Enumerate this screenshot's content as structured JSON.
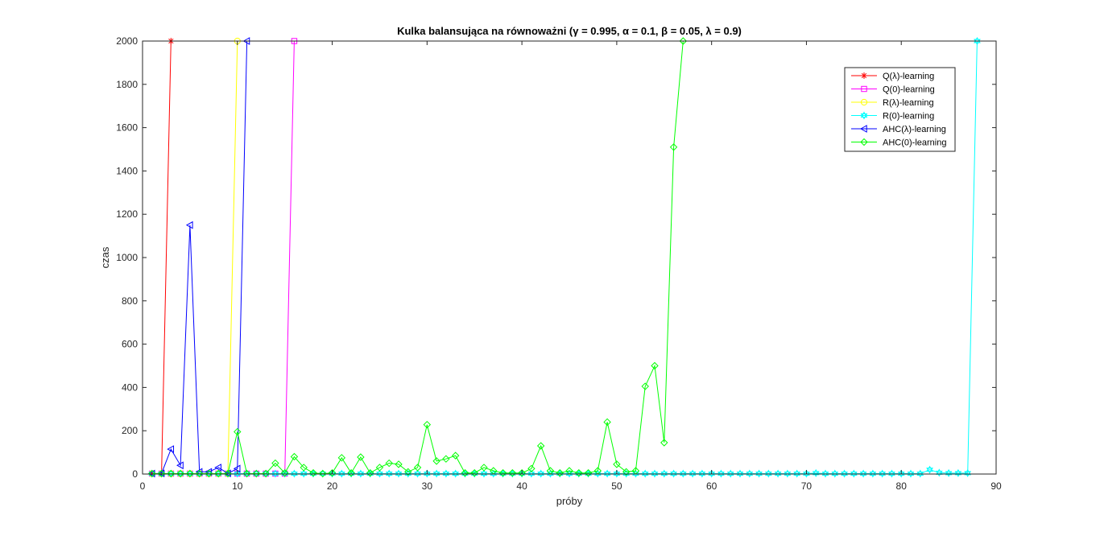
{
  "chart_data": {
    "type": "line",
    "title": "Kulka balansująca na równoważni (γ = 0.995, α = 0.1, β = 0.05, λ = 0.9)",
    "xlabel": "próby",
    "ylabel": "czas",
    "xlim": [
      0,
      90
    ],
    "ylim": [
      0,
      2000
    ],
    "xticks": [
      0,
      10,
      20,
      30,
      40,
      50,
      60,
      70,
      80,
      90
    ],
    "yticks": [
      0,
      200,
      400,
      600,
      800,
      1000,
      1200,
      1400,
      1600,
      1800,
      2000
    ],
    "grid": false,
    "legend_position": "top-right",
    "series": [
      {
        "name": "Q(λ)-learning",
        "color": "#ff0000",
        "marker": "asterisk",
        "x": [
          1,
          2,
          3
        ],
        "y": [
          2,
          2,
          2000
        ]
      },
      {
        "name": "Q(0)-learning",
        "color": "#ff00ff",
        "marker": "square",
        "x": [
          1,
          2,
          3,
          4,
          5,
          6,
          7,
          8,
          9,
          10,
          11,
          12,
          13,
          14,
          15,
          16
        ],
        "y": [
          2,
          2,
          2,
          2,
          2,
          2,
          2,
          2,
          2,
          2,
          2,
          2,
          2,
          2,
          2,
          2000
        ]
      },
      {
        "name": "R(λ)-learning",
        "color": "#ffff00",
        "marker": "circle",
        "x": [
          1,
          2,
          3,
          4,
          5,
          6,
          7,
          8,
          9,
          10
        ],
        "y": [
          2,
          2,
          2,
          2,
          2,
          2,
          2,
          2,
          2,
          2000
        ]
      },
      {
        "name": "R(0)-learning",
        "color": "#00ffff",
        "marker": "hexagram",
        "x": [
          1,
          2,
          3,
          4,
          5,
          6,
          7,
          8,
          9,
          10,
          11,
          12,
          13,
          14,
          15,
          16,
          17,
          18,
          19,
          20,
          21,
          22,
          23,
          24,
          25,
          26,
          27,
          28,
          29,
          30,
          31,
          32,
          33,
          34,
          35,
          36,
          37,
          38,
          39,
          40,
          41,
          42,
          43,
          44,
          45,
          46,
          47,
          48,
          49,
          50,
          51,
          52,
          53,
          54,
          55,
          56,
          57,
          58,
          59,
          60,
          61,
          62,
          63,
          64,
          65,
          66,
          67,
          68,
          69,
          70,
          71,
          72,
          73,
          74,
          75,
          76,
          77,
          78,
          79,
          80,
          81,
          82,
          83,
          84,
          85,
          86,
          87,
          88
        ],
        "y": [
          2,
          2,
          2,
          2,
          2,
          2,
          2,
          2,
          2,
          2,
          2,
          2,
          2,
          2,
          2,
          2,
          2,
          2,
          2,
          2,
          2,
          2,
          2,
          2,
          2,
          2,
          2,
          2,
          2,
          2,
          2,
          2,
          2,
          2,
          2,
          2,
          2,
          2,
          2,
          2,
          2,
          2,
          2,
          2,
          2,
          2,
          2,
          2,
          2,
          2,
          2,
          2,
          2,
          2,
          2,
          2,
          2,
          2,
          2,
          2,
          2,
          2,
          2,
          2,
          2,
          2,
          2,
          2,
          2,
          2,
          4,
          2,
          2,
          2,
          2,
          2,
          2,
          2,
          2,
          2,
          2,
          2,
          20,
          6,
          4,
          4,
          4,
          2000
        ]
      },
      {
        "name": "AHC(λ)-learning",
        "color": "#0000ff",
        "marker": "triangle-left",
        "x": [
          1,
          2,
          3,
          4,
          5,
          6,
          7,
          8,
          9,
          10,
          11
        ],
        "y": [
          2,
          3,
          115,
          40,
          1150,
          10,
          10,
          30,
          3,
          25,
          2000
        ]
      },
      {
        "name": "AHC(0)-learning",
        "color": "#00ff00",
        "marker": "diamond",
        "x": [
          1,
          2,
          3,
          4,
          5,
          6,
          7,
          8,
          9,
          10,
          11,
          12,
          13,
          14,
          15,
          16,
          17,
          18,
          19,
          20,
          21,
          22,
          23,
          24,
          25,
          26,
          27,
          28,
          29,
          30,
          31,
          32,
          33,
          34,
          35,
          36,
          37,
          38,
          39,
          40,
          41,
          42,
          43,
          44,
          45,
          46,
          47,
          48,
          49,
          50,
          51,
          52,
          53,
          54,
          55,
          56,
          57
        ],
        "y": [
          2,
          2,
          2,
          2,
          2,
          2,
          2,
          2,
          2,
          195,
          2,
          2,
          2,
          50,
          5,
          80,
          30,
          5,
          2,
          5,
          75,
          5,
          78,
          5,
          30,
          50,
          45,
          10,
          30,
          228,
          60,
          70,
          85,
          5,
          5,
          30,
          15,
          5,
          5,
          5,
          25,
          130,
          15,
          5,
          15,
          5,
          5,
          15,
          240,
          45,
          10,
          15,
          405,
          500,
          145,
          1510,
          2000
        ]
      }
    ]
  }
}
